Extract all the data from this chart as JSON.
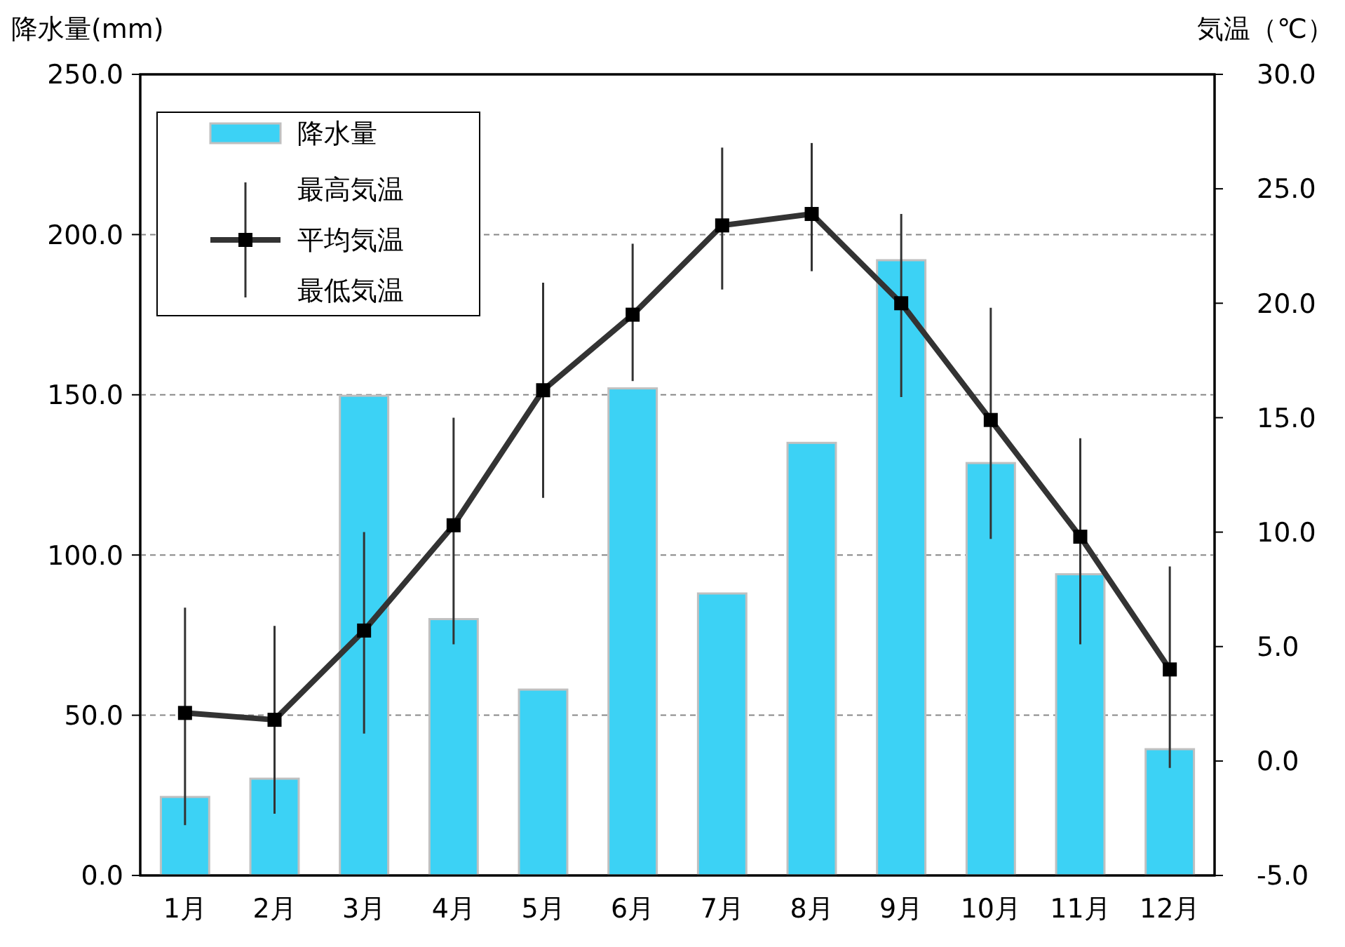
{
  "chart_data": {
    "type": "bar",
    "ylabel": "降水量(mm)",
    "y2label": "気温（℃）",
    "categories": [
      "1月",
      "2月",
      "3月",
      "4月",
      "5月",
      "6月",
      "7月",
      "8月",
      "9月",
      "10月",
      "11月",
      "12月"
    ],
    "series": [
      {
        "name": "降水量",
        "color": "#3cd2f5",
        "values": [
          24.5,
          30.2,
          149.7,
          80,
          58,
          152,
          88,
          135,
          192,
          128.7,
          94,
          39.4
        ]
      },
      {
        "name": "平均気温",
        "type": "line",
        "axis": "y2",
        "color": "#333333",
        "marker": "square",
        "values": [
          2.1,
          1.8,
          5.7,
          10.3,
          16.2,
          19.5,
          23.4,
          23.9,
          20.0,
          14.9,
          9.8,
          4.0
        ],
        "errors": [
          [
            -2.8,
            6.7
          ],
          [
            -2.3,
            5.9
          ],
          [
            1.2,
            10.0
          ],
          [
            5.1,
            15.0
          ],
          [
            11.5,
            20.9
          ],
          [
            16.6,
            22.6
          ],
          [
            20.6,
            26.8
          ],
          [
            21.4,
            27.0
          ],
          [
            15.9,
            23.9
          ],
          [
            9.7,
            19.8
          ],
          [
            5.1,
            14.1
          ],
          [
            -0.3,
            8.5
          ]
        ]
      }
    ],
    "annotations": [
      "最高気温",
      "最低気温"
    ],
    "ylim": [
      0,
      250
    ],
    "yticks": [
      {
        "value": 0,
        "label": "0.0"
      },
      {
        "value": 50,
        "label": "50.0"
      },
      {
        "value": 100,
        "label": "100.0"
      },
      {
        "value": 150,
        "label": "150.0"
      },
      {
        "value": 200,
        "label": "200.0"
      },
      {
        "value": 250,
        "label": "250.0"
      }
    ],
    "y2lim": [
      -5,
      30
    ],
    "y2ticks": [
      {
        "value": -5,
        "label": "-5.0"
      },
      {
        "value": 0,
        "label": "0.0"
      },
      {
        "value": 5,
        "label": "5.0"
      },
      {
        "value": 10,
        "label": "10.0"
      },
      {
        "value": 15,
        "label": "15.0"
      },
      {
        "value": 20,
        "label": "20.0"
      },
      {
        "value": 25,
        "label": "25.0"
      },
      {
        "value": 30,
        "label": "30.0"
      }
    ],
    "grid": "y",
    "legend": "top left"
  }
}
